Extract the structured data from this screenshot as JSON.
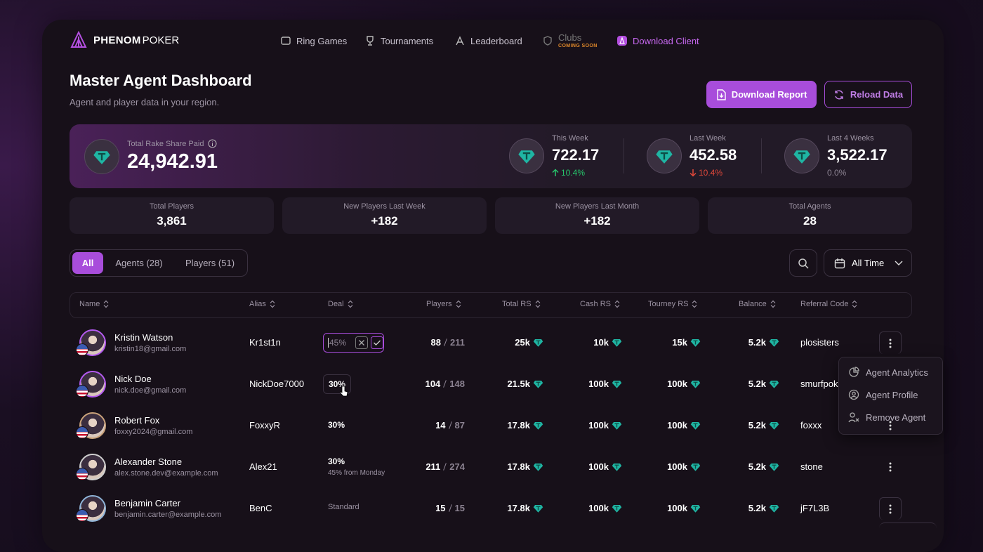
{
  "nav": {
    "brand_bold": "PHENOM",
    "brand_light": "POKER",
    "items": [
      "Ring Games",
      "Tournaments",
      "Leaderboard",
      "Clubs",
      "Download Client"
    ],
    "clubs_badge": "COMING SOON"
  },
  "header": {
    "title": "Master Agent Dashboard",
    "subtitle": "Agent and player data in your region.",
    "buttons": [
      "Download Report",
      "Reload Data"
    ]
  },
  "rake": {
    "label": "Total Rake Share Paid",
    "total": "24,942.91",
    "periods": [
      {
        "label": "This Week",
        "value": "722.17",
        "change": "10.4%",
        "direction": "up"
      },
      {
        "label": "Last Week",
        "value": "452.58",
        "change": "10.4%",
        "direction": "down"
      },
      {
        "label": "Last 4 Weeks",
        "value": "3,522.17",
        "change": "0.0%",
        "direction": "flat"
      }
    ]
  },
  "stats": [
    {
      "label": "Total Players",
      "value": "3,861"
    },
    {
      "label": "New Players Last Week",
      "value": "+182"
    },
    {
      "label": "New Players Last Month",
      "value": "+182"
    },
    {
      "label": "Total Agents",
      "value": "28"
    }
  ],
  "tabs": [
    "All",
    "Agents (28)",
    "Players (51)"
  ],
  "filter": "All Time",
  "table": {
    "columns": [
      "Name",
      "Alias",
      "Deal",
      "Players",
      "Total RS",
      "Cash RS",
      "Tourney RS",
      "Balance",
      "Referral Code"
    ],
    "rows": [
      {
        "name": "Kristin Watson",
        "email": "kristin18@gmail.com",
        "alias": "Kr1st1n",
        "deal": "45%",
        "players": "88",
        "players_total": "211",
        "total_rs": "25k",
        "cash_rs": "10k",
        "tourney_rs": "15k",
        "balance": "5.2k",
        "referral": "plosisters"
      },
      {
        "name": "Nick Doe",
        "email": "nick.doe@gmail.com",
        "alias": "NickDoe7000",
        "deal": "30%",
        "players": "104",
        "players_total": "148",
        "total_rs": "21.5k",
        "cash_rs": "100k",
        "tourney_rs": "100k",
        "balance": "5.2k",
        "referral": "smurfpok"
      },
      {
        "name": "Robert Fox",
        "email": "foxxy2024@gmail.com",
        "alias": "FoxxyR",
        "deal": "30%",
        "players": "14",
        "players_total": "87",
        "total_rs": "17.8k",
        "cash_rs": "100k",
        "tourney_rs": "100k",
        "balance": "5.2k",
        "referral": "foxxx"
      },
      {
        "name": "Alexander Stone",
        "email": "alex.stone.dev@example.com",
        "alias": "Alex21",
        "deal": "30%",
        "deal_note": "45% from Monday",
        "players": "211",
        "players_total": "274",
        "total_rs": "17.8k",
        "cash_rs": "100k",
        "tourney_rs": "100k",
        "balance": "5.2k",
        "referral": "stone"
      },
      {
        "name": "Benjamin Carter",
        "email": "benjamin.carter@example.com",
        "alias": "BenC",
        "deal": "Standard",
        "players": "15",
        "players_total": "15",
        "total_rs": "17.8k",
        "cash_rs": "100k",
        "tourney_rs": "100k",
        "balance": "5.2k",
        "referral": "jF7L3B"
      }
    ]
  },
  "menu": [
    "Agent Analytics",
    "Agent Profile",
    "Remove Agent"
  ]
}
